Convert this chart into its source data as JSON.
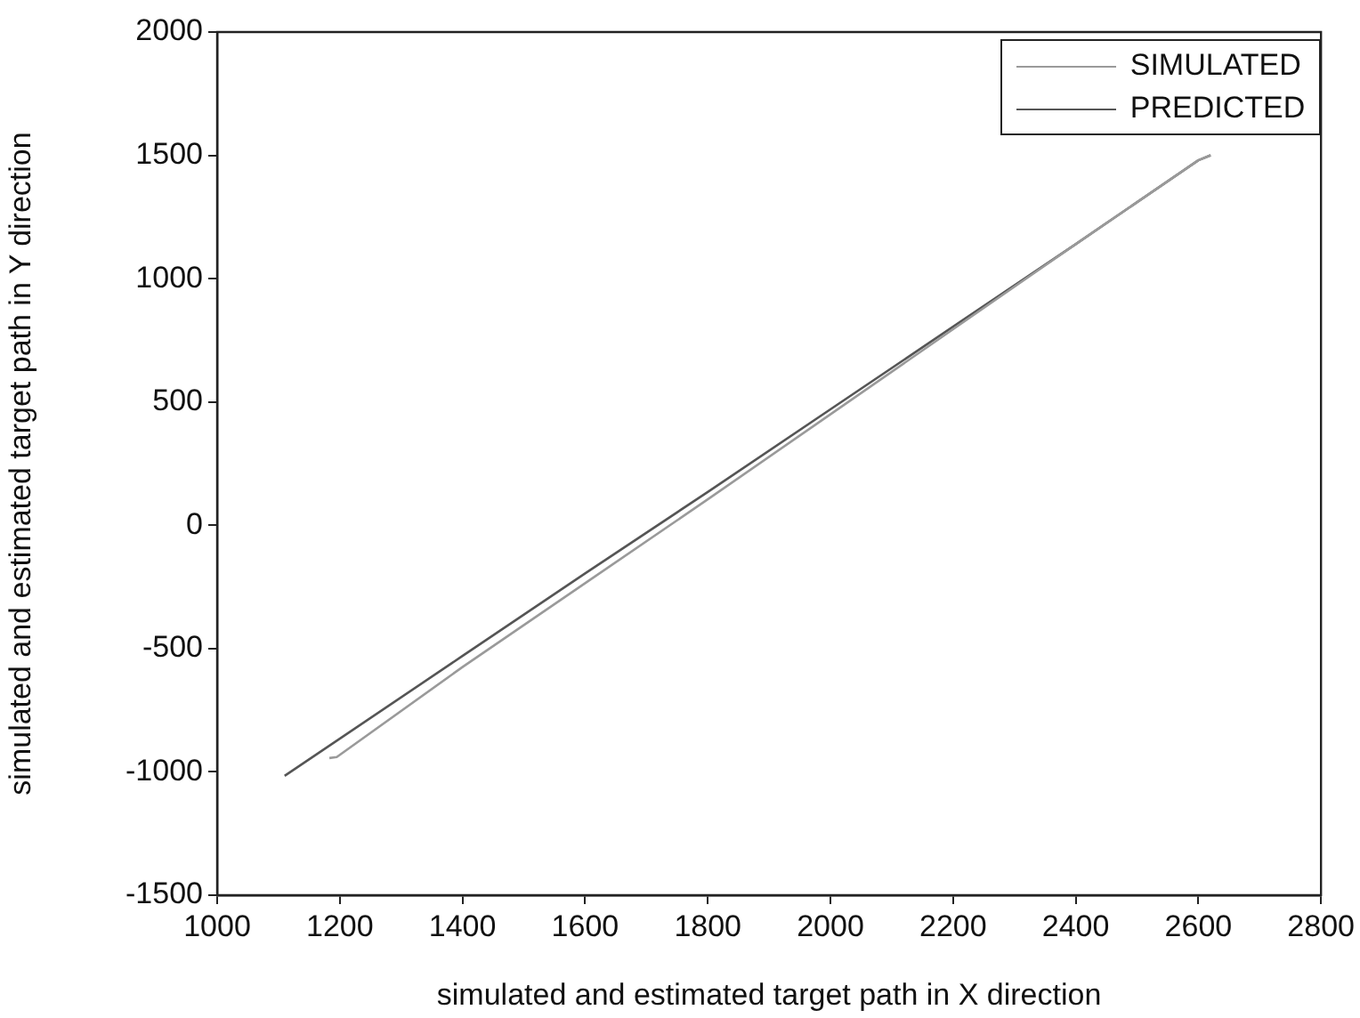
{
  "chart_data": {
    "type": "line",
    "xlabel": "simulated and estimated target path in X direction",
    "ylabel": "simulated and estimated target path in Y direction",
    "xlim": [
      1000,
      2800
    ],
    "xticks": [
      1000,
      1200,
      1400,
      1600,
      1800,
      2000,
      2200,
      2400,
      2600,
      2800
    ],
    "ylim": [
      -1500,
      2000
    ],
    "yticks": [
      -1500,
      -1000,
      -500,
      0,
      500,
      1000,
      1500,
      2000
    ],
    "grid": false,
    "legend": "top right",
    "marker": "none",
    "line_style": "solid",
    "series": [
      {
        "name": "SIMULATED",
        "color": "#9a9a9a",
        "x": [
          1183,
          1195,
          1400,
          1600,
          1800,
          2000,
          2200,
          2400,
          2600,
          2620
        ],
        "values": [
          -944,
          -940,
          -575,
          -235,
          105,
          450,
          795,
          1140,
          1480,
          1500
        ]
      },
      {
        "name": "PREDICTED",
        "color": "#555555",
        "x": [
          1110,
          1400,
          1600,
          1800,
          2000,
          2200,
          2400,
          2600,
          2620
        ],
        "values": [
          -1016,
          -530,
          -195,
          135,
          470,
          805,
          1140,
          1480,
          1500
        ]
      }
    ]
  }
}
